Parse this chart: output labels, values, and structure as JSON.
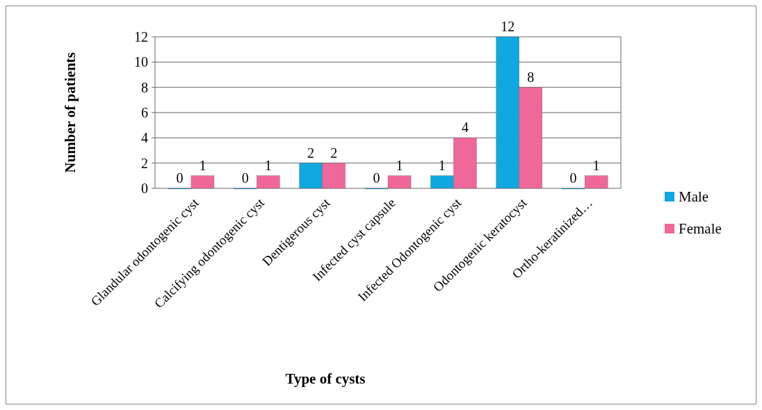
{
  "chart_data": {
    "type": "bar",
    "xlabel": "Type of cysts",
    "ylabel": "Number of patients",
    "categories": [
      "Glandular odontogenic cyst",
      "Calcifying odontogenic cyst",
      "Dentigerous cyst",
      "Infected cyst capsule",
      "Infected Odontogenic cyst",
      "Odontogenic keratocyst",
      "Ortho-keratinized…"
    ],
    "series": [
      {
        "name": "Male",
        "color": "#0fa8e0",
        "values": [
          0,
          0,
          2,
          0,
          1,
          12,
          0
        ]
      },
      {
        "name": "Female",
        "color": "#f0679a",
        "values": [
          1,
          1,
          2,
          1,
          4,
          8,
          1
        ]
      }
    ],
    "ylim": [
      0,
      12
    ],
    "yticks": [
      0,
      2,
      4,
      6,
      8,
      10,
      12
    ],
    "grid": "y",
    "legend": "right",
    "data_labels": true
  }
}
